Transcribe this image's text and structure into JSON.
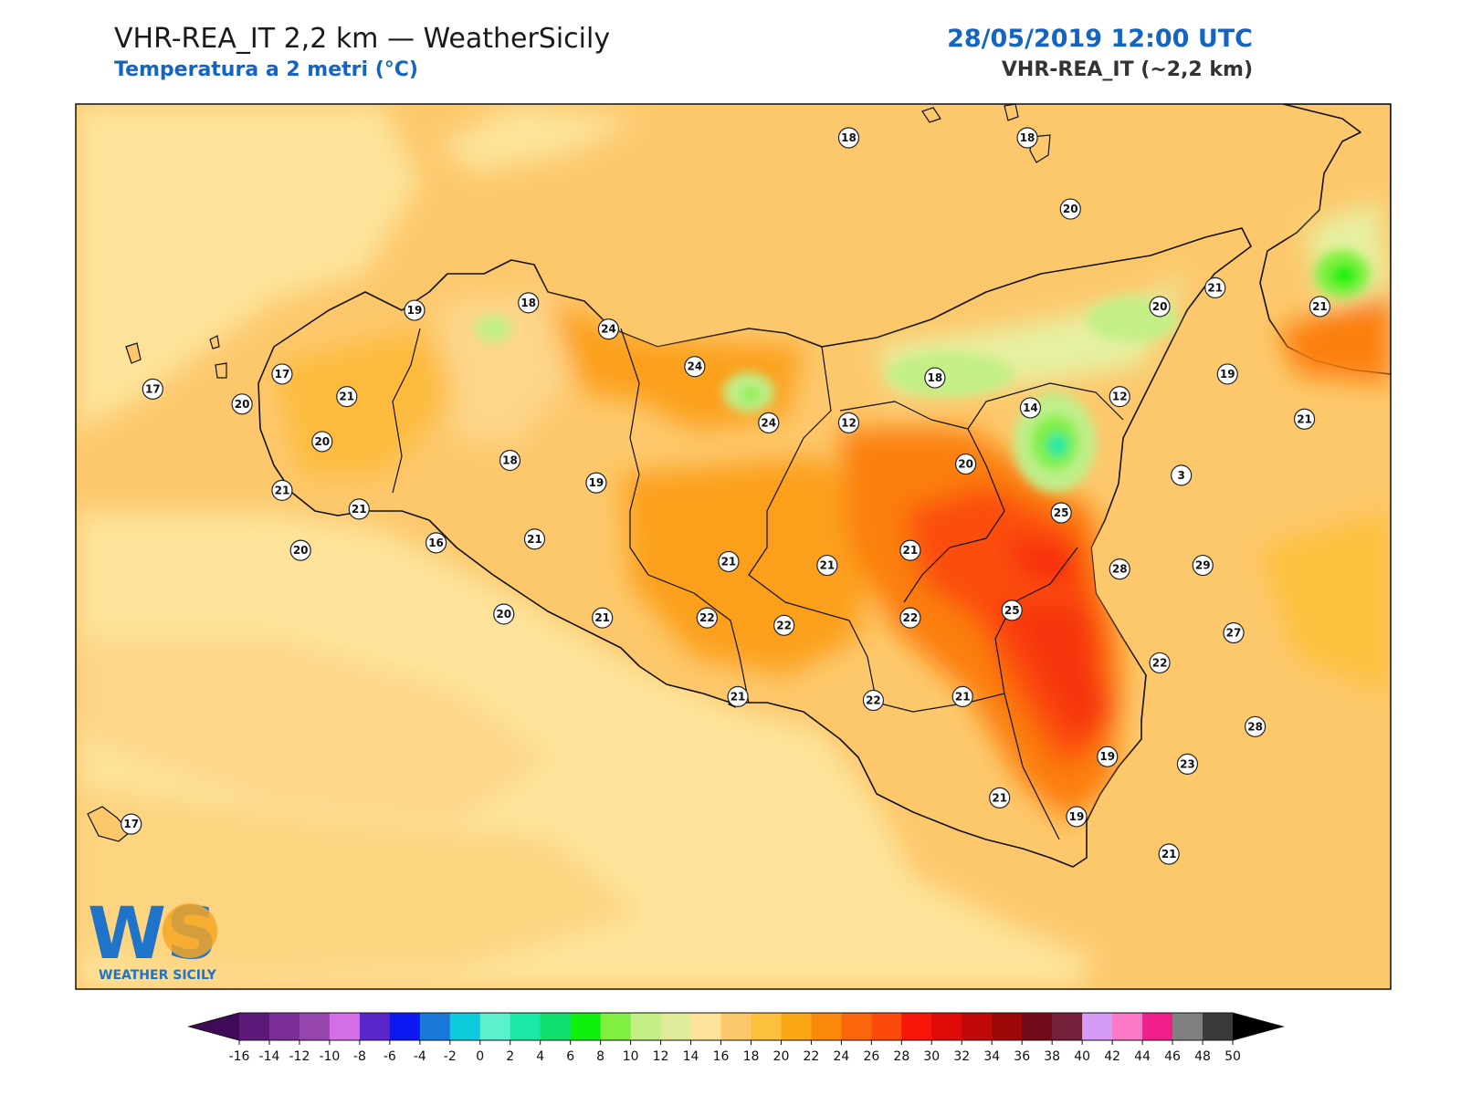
{
  "header": {
    "title": "VHR-REA_IT 2,2 km — WeatherSicily",
    "subtitle": "Temperatura a 2 metri (°C)",
    "datetime": "28/05/2019 12:00 UTC",
    "model": "VHR-REA_IT (~2,2 km)"
  },
  "logo": {
    "letters": "WS",
    "caption": "WEATHER SICILY"
  },
  "colors": {
    "sea_pale": "#fde39a",
    "land_base": "#fdc86c",
    "land_22": "#fdbb3e",
    "land_24": "#fca01e",
    "land_26": "#fb7f0f",
    "land_28": "#fb4e0c",
    "hot_30": "#f72a0a",
    "cool_16": "#fdd68a",
    "cool_14": "#e6f1a3",
    "cool_12": "#bfef8a",
    "cool_10": "#3ee83b",
    "title_blue": "#1565c0"
  },
  "colorbar": {
    "ticks": [
      "-16",
      "-14",
      "-12",
      "-10",
      "-8",
      "-6",
      "-4",
      "-2",
      "0",
      "2",
      "4",
      "6",
      "8",
      "10",
      "12",
      "14",
      "16",
      "18",
      "20",
      "22",
      "24",
      "26",
      "28",
      "30",
      "32",
      "34",
      "36",
      "38",
      "40",
      "42",
      "44",
      "46",
      "48",
      "50"
    ],
    "colors": [
      "#3f0a58",
      "#5b1a7a",
      "#7a2d96",
      "#9645ae",
      "#d56fe8",
      "#5a26c9",
      "#0c17f2",
      "#1a79d8",
      "#0ecadd",
      "#5cf0cf",
      "#19e8a6",
      "#10df6e",
      "#10f00e",
      "#7ff041",
      "#c3ef86",
      "#e0eb9a",
      "#fde39a",
      "#fdc86c",
      "#fdc03c",
      "#fca716",
      "#fb8a0c",
      "#fb650c",
      "#fb4a0b",
      "#f71409",
      "#e00a08",
      "#c00808",
      "#9c0808",
      "#700a18",
      "#74203a",
      "#d69af7",
      "#fb78c7",
      "#f01f8b",
      "#808080",
      "#3a3a3a"
    ]
  },
  "stations": [
    {
      "t": "18",
      "lon": 14.37,
      "lat": 38.63
    },
    {
      "t": "18",
      "lon": 14.95,
      "lat": 38.63
    },
    {
      "t": "20",
      "lon": 15.09,
      "lat": 38.44
    },
    {
      "t": "19",
      "lon": 12.96,
      "lat": 38.17
    },
    {
      "t": "18",
      "lon": 13.33,
      "lat": 38.19
    },
    {
      "t": "24",
      "lon": 13.59,
      "lat": 38.12
    },
    {
      "t": "24",
      "lon": 13.87,
      "lat": 38.02
    },
    {
      "t": "17",
      "lon": 12.11,
      "lat": 37.96
    },
    {
      "t": "17",
      "lon": 12.53,
      "lat": 38.0
    },
    {
      "t": "20",
      "lon": 12.4,
      "lat": 37.92
    },
    {
      "t": "21",
      "lon": 12.74,
      "lat": 37.94
    },
    {
      "t": "20",
      "lon": 12.66,
      "lat": 37.82
    },
    {
      "t": "21",
      "lon": 12.53,
      "lat": 37.69
    },
    {
      "t": "21",
      "lon": 12.78,
      "lat": 37.64
    },
    {
      "t": "20",
      "lon": 12.59,
      "lat": 37.53
    },
    {
      "t": "18",
      "lon": 13.27,
      "lat": 37.77
    },
    {
      "t": "19",
      "lon": 13.55,
      "lat": 37.71
    },
    {
      "t": "16",
      "lon": 13.03,
      "lat": 37.55
    },
    {
      "t": "21",
      "lon": 13.35,
      "lat": 37.56
    },
    {
      "t": "24",
      "lon": 14.11,
      "lat": 37.87
    },
    {
      "t": "12",
      "lon": 14.37,
      "lat": 37.87
    },
    {
      "t": "18",
      "lon": 14.65,
      "lat": 37.99
    },
    {
      "t": "14",
      "lon": 14.96,
      "lat": 37.91
    },
    {
      "t": "12",
      "lon": 15.25,
      "lat": 37.94
    },
    {
      "t": "20",
      "lon": 15.38,
      "lat": 38.18
    },
    {
      "t": "21",
      "lon": 15.56,
      "lat": 38.23
    },
    {
      "t": "21",
      "lon": 15.9,
      "lat": 38.18
    },
    {
      "t": "19",
      "lon": 15.6,
      "lat": 38.0
    },
    {
      "t": "21",
      "lon": 15.85,
      "lat": 37.88
    },
    {
      "t": "20",
      "lon": 14.75,
      "lat": 37.76
    },
    {
      "t": "3",
      "lon": 15.45,
      "lat": 37.73
    },
    {
      "t": "25",
      "lon": 15.06,
      "lat": 37.63
    },
    {
      "t": "21",
      "lon": 13.98,
      "lat": 37.5
    },
    {
      "t": "21",
      "lon": 14.3,
      "lat": 37.49
    },
    {
      "t": "21",
      "lon": 14.57,
      "lat": 37.53
    },
    {
      "t": "28",
      "lon": 15.25,
      "lat": 37.48
    },
    {
      "t": "29",
      "lon": 15.52,
      "lat": 37.49
    },
    {
      "t": "20",
      "lon": 13.25,
      "lat": 37.36
    },
    {
      "t": "21",
      "lon": 13.57,
      "lat": 37.35
    },
    {
      "t": "22",
      "lon": 13.91,
      "lat": 37.35
    },
    {
      "t": "22",
      "lon": 14.57,
      "lat": 37.35
    },
    {
      "t": "25",
      "lon": 14.9,
      "lat": 37.37
    },
    {
      "t": "22",
      "lon": 14.16,
      "lat": 37.33
    },
    {
      "t": "27",
      "lon": 15.62,
      "lat": 37.31
    },
    {
      "t": "22",
      "lon": 15.38,
      "lat": 37.23
    },
    {
      "t": "22",
      "lon": 14.45,
      "lat": 37.13
    },
    {
      "t": "21",
      "lon": 14.74,
      "lat": 37.14
    },
    {
      "t": "21",
      "lon": 14.01,
      "lat": 37.14
    },
    {
      "t": "28",
      "lon": 15.69,
      "lat": 37.06
    },
    {
      "t": "19",
      "lon": 15.21,
      "lat": 36.98
    },
    {
      "t": "23",
      "lon": 15.47,
      "lat": 36.96
    },
    {
      "t": "21",
      "lon": 14.86,
      "lat": 36.87
    },
    {
      "t": "19",
      "lon": 15.11,
      "lat": 36.82
    },
    {
      "t": "21",
      "lon": 15.41,
      "lat": 36.72
    },
    {
      "t": "17",
      "lon": 12.04,
      "lat": 36.8
    }
  ]
}
